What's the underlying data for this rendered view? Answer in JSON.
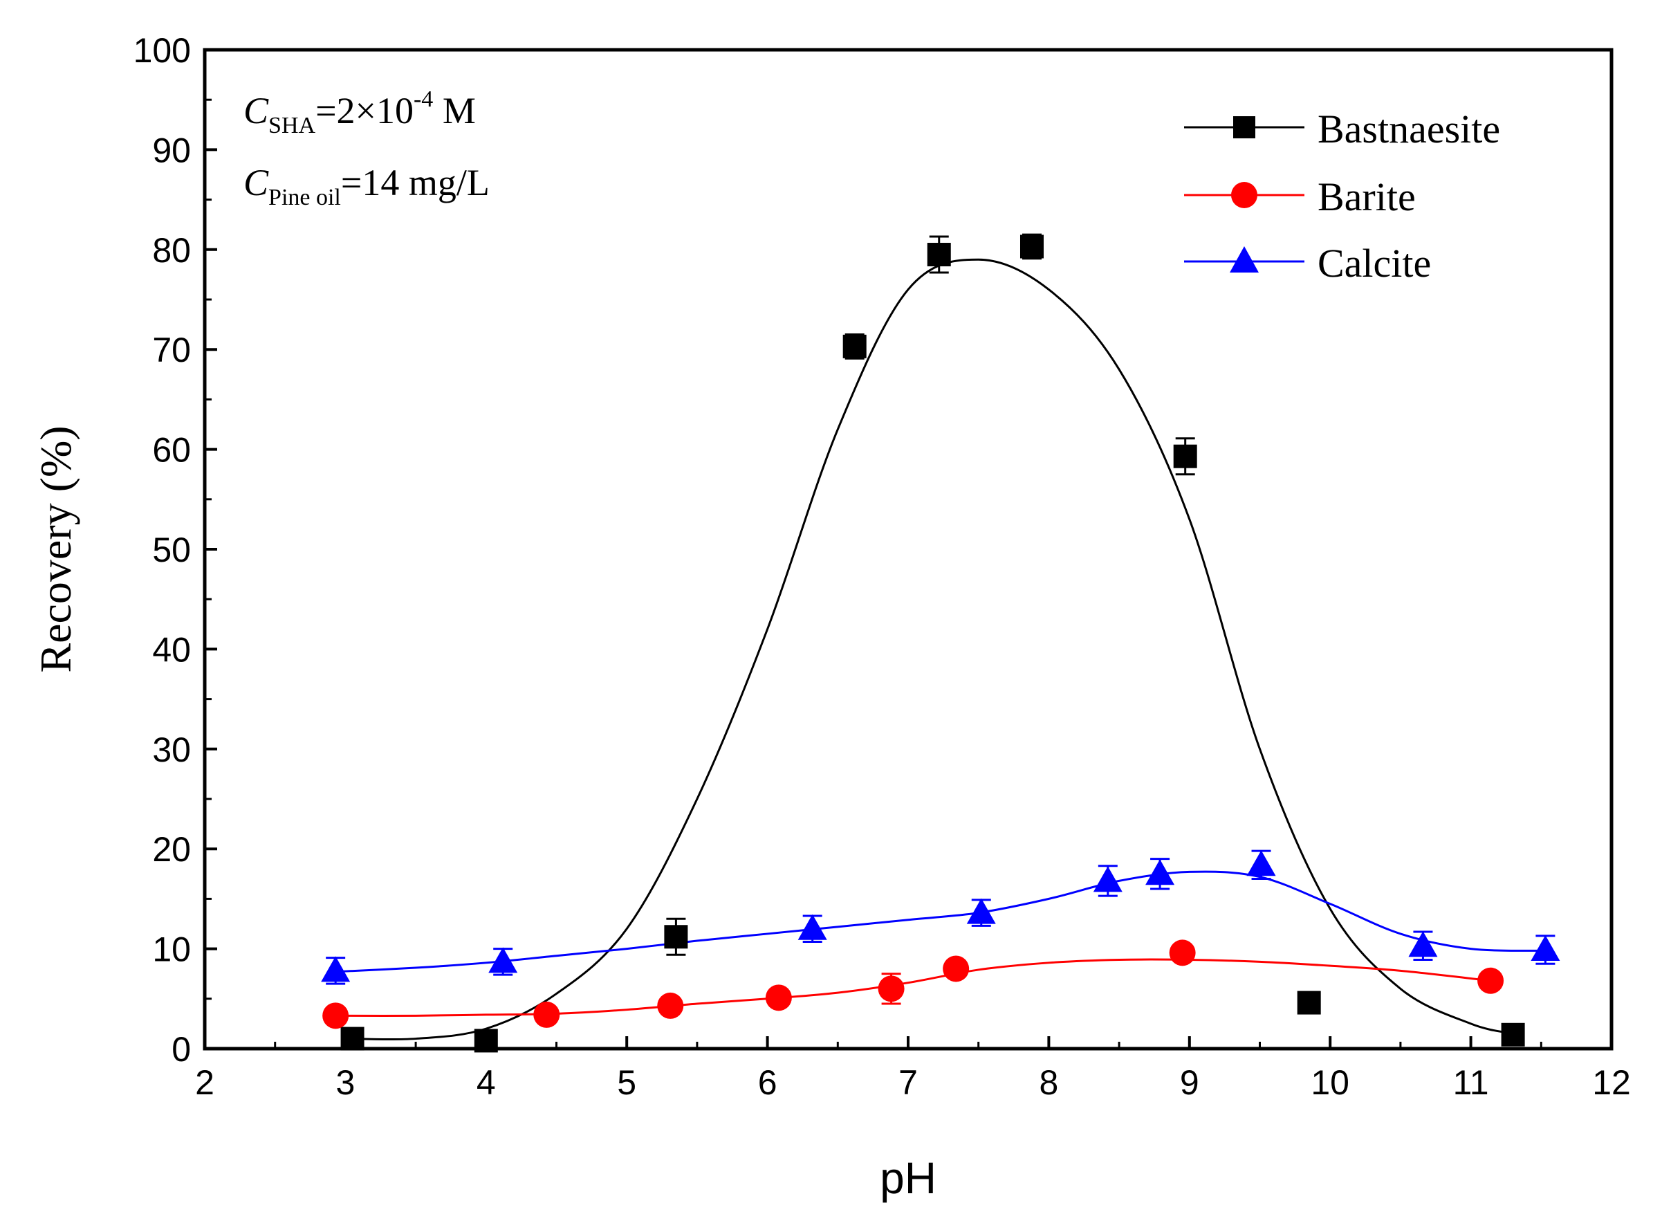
{
  "chart_data": {
    "type": "line",
    "title": "",
    "xlabel": "pH",
    "ylabel": "Recovery (%)",
    "xlim": [
      2,
      12
    ],
    "ylim": [
      0,
      100
    ],
    "x_ticks": [
      "2",
      "3",
      "4",
      "5",
      "6",
      "7",
      "8",
      "9",
      "10",
      "11",
      "12"
    ],
    "y_ticks": [
      "0",
      "10",
      "20",
      "30",
      "40",
      "50",
      "60",
      "70",
      "80",
      "90",
      "100"
    ],
    "grid": false,
    "legend_position": "top-right",
    "annotation": {
      "line1": {
        "symbol": "C",
        "subscript": "SHA",
        "value": "=2×10",
        "exponent": "-4",
        "unit": " M"
      },
      "line2": {
        "symbol": "C",
        "subscript": "Pine oil",
        "value": "=14 mg/L"
      }
    },
    "series": [
      {
        "name": "Bastnaesite",
        "color": "#000000",
        "marker": "square",
        "points": [
          {
            "x": 3.05,
            "y": 1.0,
            "err": 0
          },
          {
            "x": 4.0,
            "y": 0.8,
            "err": 0
          },
          {
            "x": 5.35,
            "y": 11.2,
            "err": 1.8
          },
          {
            "x": 6.62,
            "y": 70.3,
            "err": 1.2
          },
          {
            "x": 7.22,
            "y": 79.5,
            "err": 1.8
          },
          {
            "x": 7.88,
            "y": 80.3,
            "err": 1.2
          },
          {
            "x": 8.97,
            "y": 59.3,
            "err": 1.8
          },
          {
            "x": 9.85,
            "y": 4.6,
            "err": 0
          },
          {
            "x": 11.3,
            "y": 1.4,
            "err": 0
          }
        ],
        "fit": {
          "x": [
            3.0,
            3.5,
            4.0,
            4.5,
            5.0,
            5.5,
            6.0,
            6.5,
            7.0,
            7.5,
            8.0,
            8.5,
            9.0,
            9.5,
            10.0,
            10.5,
            11.0,
            11.3
          ],
          "y": [
            1.0,
            1.0,
            2.0,
            5.5,
            12.0,
            25.0,
            42.0,
            62.0,
            76.0,
            79.0,
            76.0,
            68.0,
            53.0,
            30.0,
            14.0,
            6.0,
            2.5,
            1.5
          ]
        }
      },
      {
        "name": "Barite",
        "color": "#ff0000",
        "marker": "circle",
        "points": [
          {
            "x": 2.93,
            "y": 3.3,
            "err": 0
          },
          {
            "x": 4.43,
            "y": 3.4,
            "err": 0
          },
          {
            "x": 5.31,
            "y": 4.3,
            "err": 0
          },
          {
            "x": 6.08,
            "y": 5.1,
            "err": 0.8
          },
          {
            "x": 6.88,
            "y": 6.0,
            "err": 1.5
          },
          {
            "x": 7.34,
            "y": 8.0,
            "err": 0
          },
          {
            "x": 8.95,
            "y": 9.6,
            "err": 0
          },
          {
            "x": 11.14,
            "y": 6.8,
            "err": 0
          }
        ],
        "fit": {
          "x": [
            2.93,
            3.5,
            4.0,
            4.5,
            5.0,
            5.5,
            6.0,
            6.5,
            7.0,
            7.5,
            8.0,
            8.5,
            9.0,
            9.5,
            10.0,
            10.5,
            11.14
          ],
          "y": [
            3.3,
            3.3,
            3.4,
            3.5,
            3.9,
            4.5,
            5.0,
            5.6,
            6.6,
            7.9,
            8.6,
            8.9,
            8.9,
            8.7,
            8.3,
            7.8,
            6.8
          ]
        }
      },
      {
        "name": "Calcite",
        "color": "#0000ff",
        "marker": "triangle",
        "points": [
          {
            "x": 2.93,
            "y": 7.8,
            "err": 1.3
          },
          {
            "x": 4.12,
            "y": 8.7,
            "err": 1.3
          },
          {
            "x": 6.32,
            "y": 12.0,
            "err": 1.3
          },
          {
            "x": 7.52,
            "y": 13.6,
            "err": 1.3
          },
          {
            "x": 8.42,
            "y": 16.8,
            "err": 1.5
          },
          {
            "x": 8.79,
            "y": 17.5,
            "err": 1.5
          },
          {
            "x": 9.51,
            "y": 18.4,
            "err": 1.4
          },
          {
            "x": 10.66,
            "y": 10.3,
            "err": 1.4
          },
          {
            "x": 11.53,
            "y": 9.9,
            "err": 1.4
          }
        ],
        "fit": {
          "x": [
            2.93,
            3.5,
            4.0,
            4.5,
            5.0,
            5.5,
            6.0,
            6.5,
            7.0,
            7.5,
            8.0,
            8.5,
            9.0,
            9.5,
            10.0,
            10.5,
            11.0,
            11.53
          ],
          "y": [
            7.7,
            8.1,
            8.6,
            9.3,
            10.0,
            10.8,
            11.5,
            12.2,
            12.9,
            13.6,
            15.0,
            16.8,
            17.7,
            17.2,
            14.5,
            11.5,
            10.0,
            9.8
          ]
        }
      }
    ]
  }
}
